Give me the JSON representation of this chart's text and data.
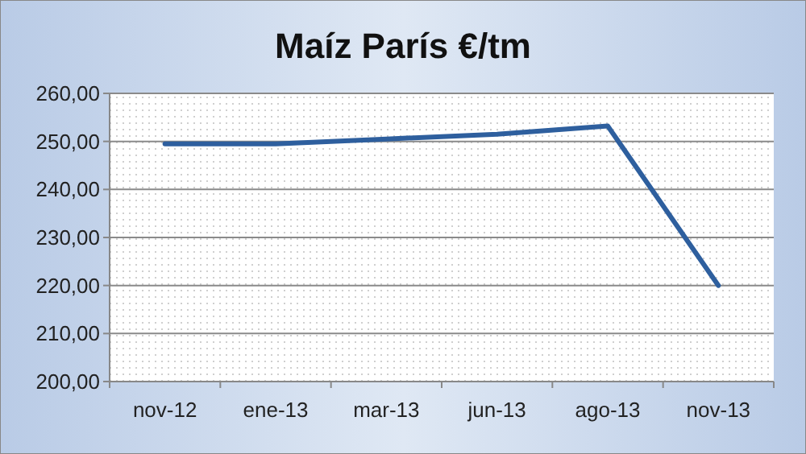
{
  "chart_data": {
    "type": "line",
    "title": "Maíz París €/tm",
    "categories": [
      "nov-12",
      "ene-13",
      "mar-13",
      "jun-13",
      "ago-13",
      "nov-13"
    ],
    "series": [
      {
        "color": "#2e5f9e",
        "values": [
          249.5,
          249.5,
          250.5,
          251.5,
          253.2,
          220
        ]
      }
    ],
    "ylim": [
      200,
      260
    ],
    "yticks": [
      {
        "value": 200,
        "label": "200,00"
      },
      {
        "value": 210,
        "label": "210,00"
      },
      {
        "value": 220,
        "label": "220,00"
      },
      {
        "value": 230,
        "label": "230,00"
      },
      {
        "value": 240,
        "label": "240,00"
      },
      {
        "value": 250,
        "label": "250,00"
      },
      {
        "value": 260,
        "label": "260,00"
      }
    ],
    "grid": "y",
    "marker": "none",
    "line_style": "solid"
  }
}
